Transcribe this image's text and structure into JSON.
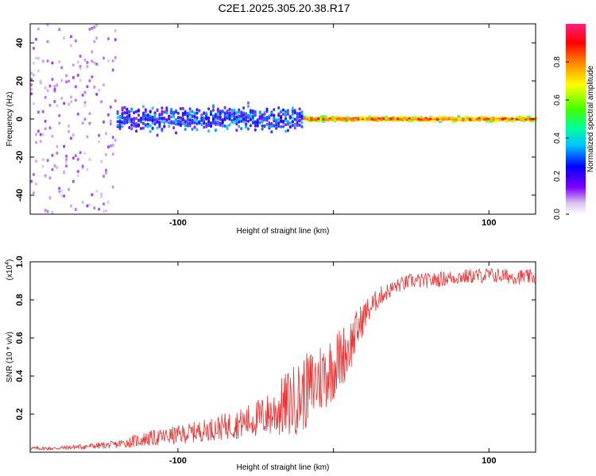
{
  "title": "C2E1.2025.305.20.38.R17",
  "chart_data": [
    {
      "type": "heatmap",
      "name": "spectrogram",
      "xlabel": "Height of straight line (km)",
      "ylabel": "Frequency (Hz)",
      "xlim": [
        -195,
        130
      ],
      "ylim": [
        -50,
        50
      ],
      "xticks": [
        -100,
        0,
        100
      ],
      "xtick_labels": [
        "-100",
        "",
        "100"
      ],
      "yticks": [
        -40,
        -20,
        0,
        20,
        40
      ],
      "ytick_labels": [
        "-40",
        "-20",
        "0",
        "20",
        "40"
      ],
      "colorbar": {
        "label": "Normalized spectral amplitude",
        "range": [
          0.0,
          1.0
        ],
        "ticks": [
          0.0,
          0.2,
          0.4,
          0.6,
          0.8
        ],
        "tick_labels": [
          "0.0",
          "0.2",
          "0.4",
          "0.6",
          "0.8"
        ]
      },
      "description_regions": [
        {
          "x_range": [
            -195,
            -140
          ],
          "freq_spread": 50,
          "amplitude": 0.1
        },
        {
          "x_range": [
            -140,
            -20
          ],
          "freq_spread": 10,
          "amplitude": 0.3
        },
        {
          "x_range": [
            -20,
            130
          ],
          "freq_spread": 2,
          "amplitude": 0.9
        }
      ]
    },
    {
      "type": "line",
      "name": "snr",
      "xlabel": "Height of straight line (km)",
      "ylabel": "SNR (10 * v/v)",
      "y_multiplier": "(x10",
      "y_multiplier_exp": "4",
      "y_multiplier_close": ")",
      "xlim": [
        -195,
        130
      ],
      "ylim": [
        0.0,
        1.0
      ],
      "xticks": [
        -100,
        0,
        100
      ],
      "xtick_labels": [
        "-100",
        "",
        "100"
      ],
      "yticks": [
        0.2,
        0.4,
        0.6,
        0.8,
        1.0
      ],
      "ytick_labels": [
        "0.2",
        "0.4",
        "0.6",
        "0.8",
        "1.0"
      ],
      "color": "#ee3333",
      "series": [
        {
          "name": "SNR",
          "x": [
            -195,
            -180,
            -160,
            -140,
            -120,
            -100,
            -80,
            -60,
            -40,
            -30,
            -20,
            -10,
            0,
            10,
            20,
            30,
            40,
            50,
            60,
            80,
            100,
            120,
            130
          ],
          "y": [
            0.02,
            0.02,
            0.03,
            0.04,
            0.07,
            0.09,
            0.12,
            0.15,
            0.2,
            0.25,
            0.3,
            0.38,
            0.45,
            0.55,
            0.72,
            0.82,
            0.87,
            0.9,
            0.9,
            0.92,
            0.93,
            0.92,
            0.92
          ],
          "noise": [
            0.01,
            0.01,
            0.015,
            0.02,
            0.04,
            0.05,
            0.06,
            0.08,
            0.12,
            0.18,
            0.2,
            0.2,
            0.18,
            0.15,
            0.08,
            0.05,
            0.04,
            0.04,
            0.04,
            0.04,
            0.04,
            0.04,
            0.04
          ]
        }
      ]
    }
  ]
}
